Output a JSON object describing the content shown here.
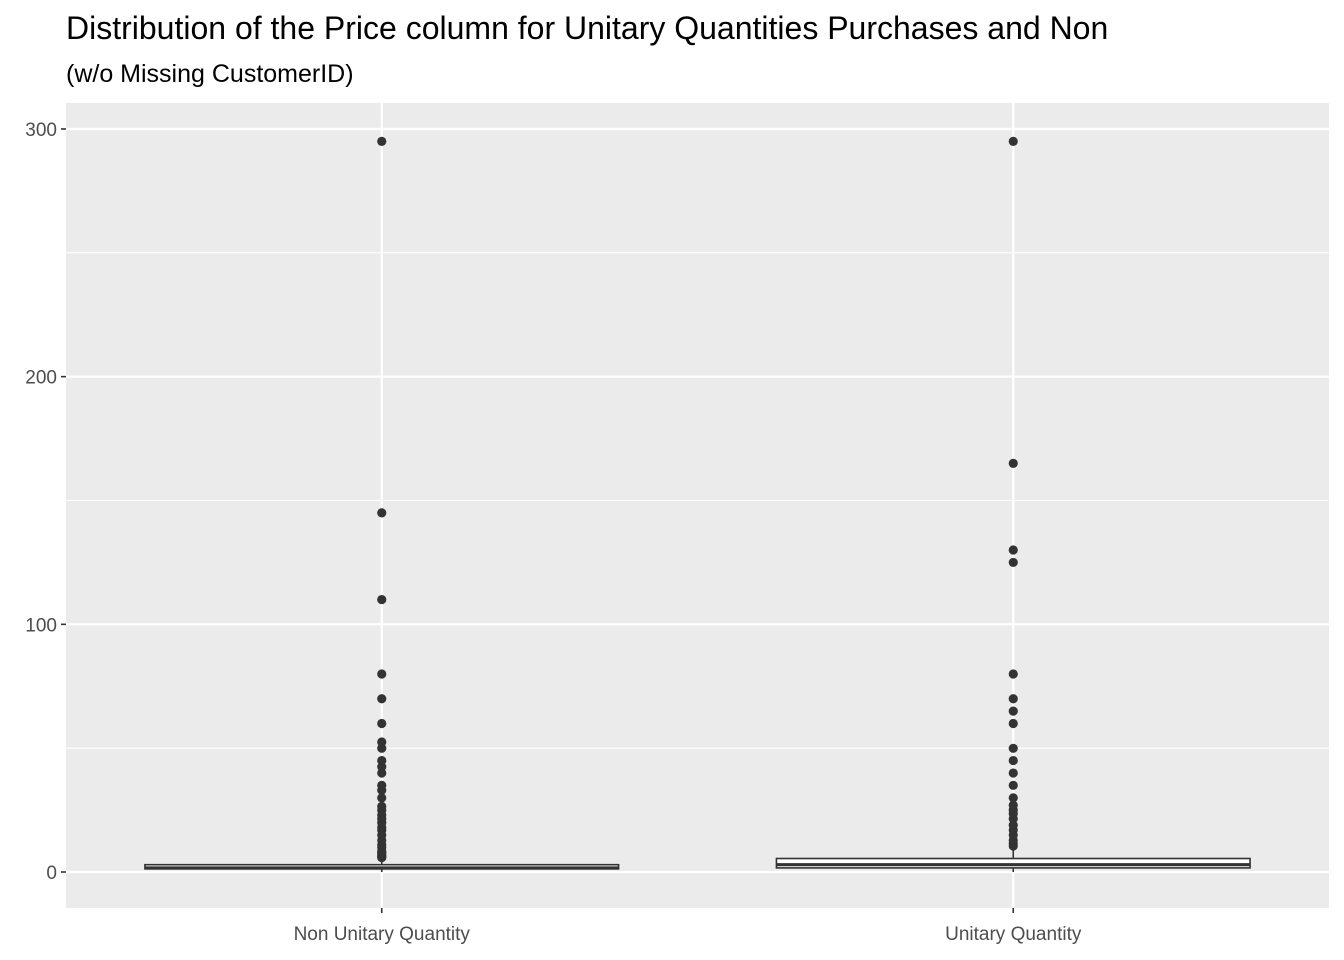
{
  "chart_data": {
    "type": "boxplot",
    "title": "Distribution of the Price column for Unitary Quantities Purchases and Non",
    "subtitle": "(w/o Missing CustomerID)",
    "xlabel": "",
    "ylabel": "",
    "categories": [
      "Non Unitary Quantity",
      "Unitary Quantity"
    ],
    "ylim": [
      -15,
      310
    ],
    "yticks": [
      0,
      100,
      200,
      300
    ],
    "ytick_labels": [
      "0",
      "100",
      "200",
      "300"
    ],
    "grid": true,
    "legend": "none",
    "boxes": [
      {
        "category": "Non Unitary Quantity",
        "q1": 1.25,
        "median": 1.65,
        "q3": 2.95,
        "whisker_low": 0,
        "whisker_high": 5.5,
        "outliers": [
          5.8,
          6.2,
          6.75,
          7.5,
          7.95,
          8.5,
          9.95,
          10.95,
          12.75,
          14.95,
          16.95,
          18,
          19.95,
          21.5,
          23,
          24.95,
          26.5,
          29.95,
          33,
          35,
          39.95,
          42.5,
          45,
          49.95,
          52.5,
          59.95,
          69.95,
          79.95,
          110,
          145,
          295
        ]
      },
      {
        "category": "Unitary Quantity",
        "q1": 1.65,
        "median": 2.95,
        "q3": 5.45,
        "whisker_low": 0,
        "whisker_high": 9.95,
        "outliers": [
          10.5,
          11.5,
          12.75,
          14.95,
          16.95,
          18.95,
          21.5,
          23.5,
          25,
          26.95,
          29.95,
          35,
          39.95,
          45,
          49.95,
          59.95,
          64.95,
          69.95,
          79.95,
          125,
          130,
          165,
          295
        ]
      }
    ],
    "colors": {
      "panel_background": "#ebebeb",
      "grid_line": "#ffffff",
      "box_fill": "#ffffff",
      "box_line": "#333333",
      "point": "#333333",
      "tick_text": "#4d4d4d",
      "tick_mark": "#333333"
    }
  }
}
